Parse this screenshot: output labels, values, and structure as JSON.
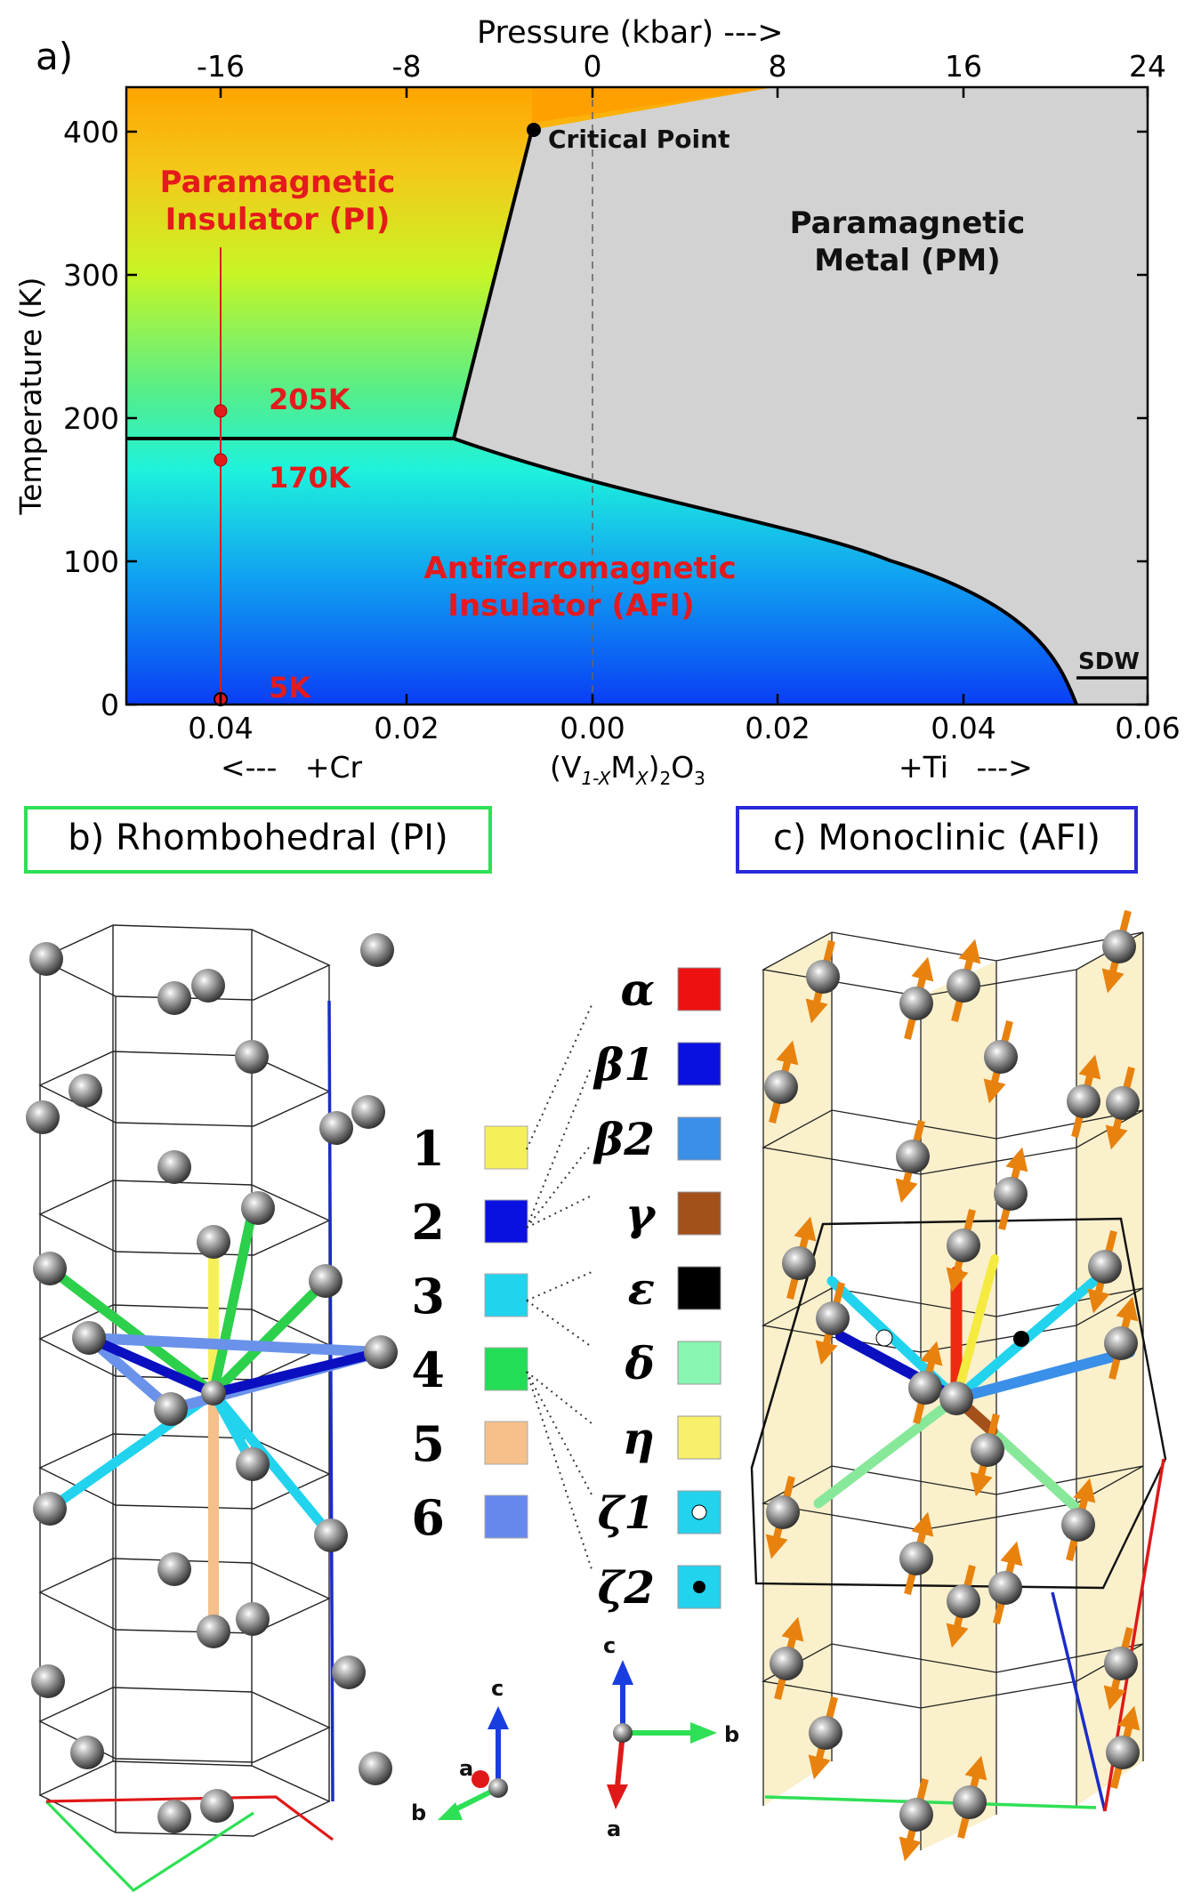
{
  "panel_a": {
    "label": "a)",
    "top_axis_title": "Pressure (kbar) --->",
    "top_ticks": [
      "-16",
      "-8",
      "0",
      "8",
      "16",
      "24"
    ],
    "y_axis_title": "Temperature (K)",
    "y_ticks": [
      "0",
      "100",
      "200",
      "300",
      "400"
    ],
    "x_ticks": [
      "0.04",
      "0.02",
      "0.00",
      "0.02",
      "0.04",
      "0.06"
    ],
    "bottom_left": "<---   +Cr",
    "bottom_center": "(V",
    "bottom_center_sub1": "1-X",
    "bottom_center_mid": "M",
    "bottom_center_sub2": "X",
    "bottom_center_end": ")",
    "bottom_center_sub3": "2",
    "bottom_center_tail": "O",
    "bottom_center_sub4": "3",
    "bottom_right": "+Ti   --->",
    "region_pi_line1": "Paramagnetic",
    "region_pi_line2": "Insulator (PI)",
    "region_pm_line1": "Paramagnetic",
    "region_pm_line2": "Metal (PM)",
    "region_afi_line1": "Antiferromagnetic",
    "region_afi_line2": "Insulator (AFI)",
    "critical_point": "Critical Point",
    "sdw": "SDW",
    "temp_205": "205K",
    "temp_170": "170K",
    "temp_5": "5K"
  },
  "chart_data": {
    "type": "line",
    "title": "",
    "xlabel": "(V1-X MX)2O3",
    "ylabel": "Temperature (K)",
    "top_xlabel": "Pressure (kbar)",
    "xlim": [
      -0.052,
      0.061
    ],
    "ylim": [
      0,
      430
    ],
    "series": [
      {
        "name": "PI-PM boundary",
        "x": [
          -0.0152,
          -0.0068
        ],
        "y": [
          185,
          400
        ]
      },
      {
        "name": "PI-AFI boundary",
        "x": [
          -0.052,
          -0.0152
        ],
        "y": [
          185,
          185
        ]
      },
      {
        "name": "AFI-PM boundary",
        "x": [
          -0.0152,
          0.0,
          0.02,
          0.033,
          0.045,
          0.052
        ],
        "y": [
          185,
          155,
          120,
          100,
          50,
          0
        ]
      },
      {
        "name": "SDW boundary",
        "x": [
          0.052,
          0.061
        ],
        "y": [
          20,
          20
        ]
      }
    ],
    "points": [
      {
        "label": "Critical Point",
        "x": -0.0068,
        "y": 400
      },
      {
        "label": "205K",
        "x": -0.0415,
        "y": 205
      },
      {
        "label": "170K",
        "x": -0.0415,
        "y": 170
      },
      {
        "label": "5K",
        "x": -0.0415,
        "y": 5
      }
    ],
    "regions": [
      "Paramagnetic Insulator (PI)",
      "Paramagnetic Metal (PM)",
      "Antiferromagnetic Insulator (AFI)",
      "SDW"
    ]
  },
  "panel_b": {
    "title": "b) Rhombohedral (PI)",
    "axis_c": "c",
    "axis_a": "a",
    "axis_b": "b"
  },
  "panel_c": {
    "title": "c) Monoclinic (AFI)",
    "axis_c": "c",
    "axis_a": "a",
    "axis_b": "b"
  },
  "legend_left": [
    {
      "num": "1",
      "color": "#f5f05a"
    },
    {
      "num": "2",
      "color": "#0a10e0"
    },
    {
      "num": "3",
      "color": "#22d3ee"
    },
    {
      "num": "4",
      "color": "#22dd55"
    },
    {
      "num": "5",
      "color": "#f5c08a"
    },
    {
      "num": "6",
      "color": "#6688ee"
    }
  ],
  "legend_right": [
    {
      "sym": "α",
      "color": "#ee1111"
    },
    {
      "sym": "β1",
      "color": "#0a10e0"
    },
    {
      "sym": "β2",
      "color": "#3a8fe8"
    },
    {
      "sym": "γ",
      "color": "#a4501a"
    },
    {
      "sym": "ε",
      "color": "#000000"
    },
    {
      "sym": "δ",
      "color": "#88f5b0"
    },
    {
      "sym": "η",
      "color": "#f8f06a"
    },
    {
      "sym": "ζ1",
      "color": "#22d3ee"
    },
    {
      "sym": "ζ2",
      "color": "#22d3ee"
    }
  ]
}
